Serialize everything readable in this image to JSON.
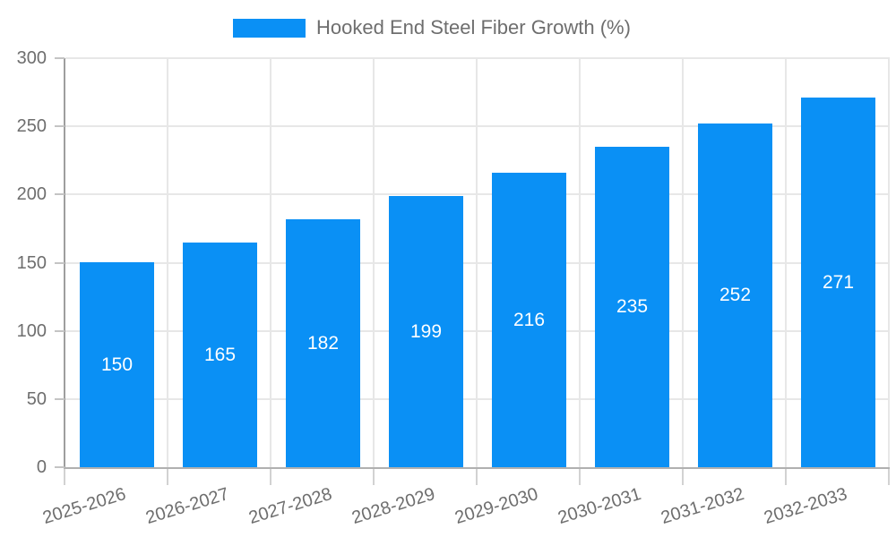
{
  "legend": {
    "label": "Hooked End Steel Fiber Growth (%)"
  },
  "chart_data": {
    "type": "bar",
    "title": "Hooked End Steel Fiber Growth (%)",
    "categories": [
      "2025-2026",
      "2026-2027",
      "2027-2028",
      "2028-2029",
      "2029-2030",
      "2030-2031",
      "2031-2032",
      "2032-2033"
    ],
    "values": [
      150,
      165,
      182,
      199,
      216,
      235,
      252,
      271
    ],
    "bar_labels": [
      "150",
      "165",
      "182",
      "199",
      "216",
      "235",
      "252",
      "271"
    ],
    "xlabel": "",
    "ylabel": "",
    "ylim": [
      0,
      300
    ],
    "yticks": [
      0,
      50,
      100,
      150,
      200,
      250,
      300
    ],
    "grid": true,
    "legend_position": "top",
    "colors": {
      "bar": "#0a90f5",
      "text": "#6e6e6e",
      "bar_label": "#ffffff",
      "gridline": "#e7e7e7",
      "axis": "#a8a8a8"
    }
  }
}
